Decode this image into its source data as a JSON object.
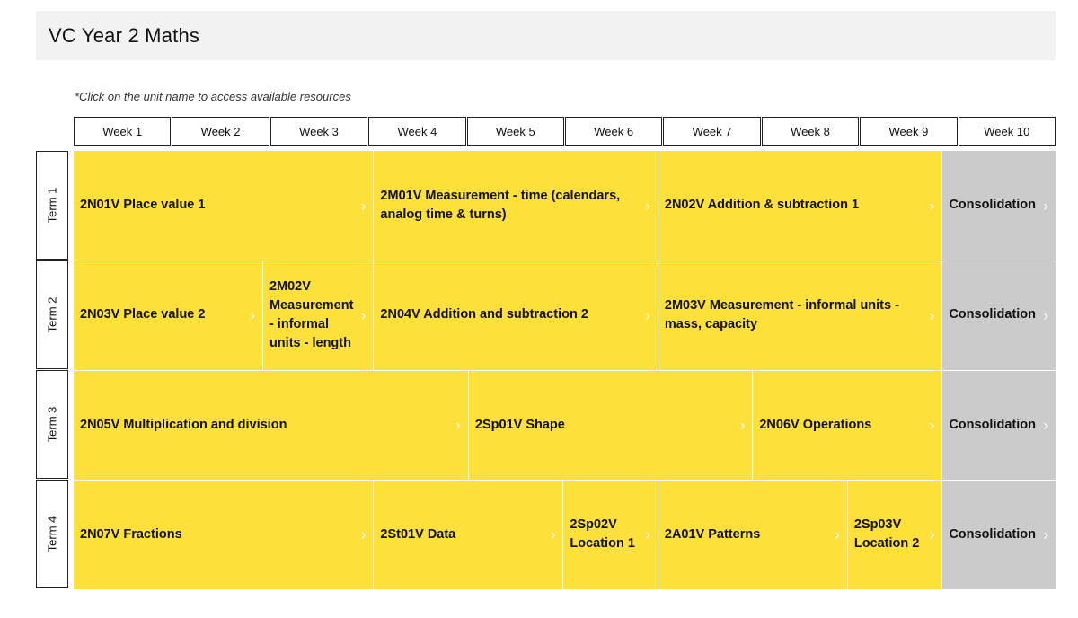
{
  "header": {
    "title": "VC Year 2 Maths"
  },
  "note": "*Click on the unit name to access available resources",
  "weeks": [
    "Week 1",
    "Week 2",
    "Week 3",
    "Week 4",
    "Week 5",
    "Week 6",
    "Week 7",
    "Week 8",
    "Week 9",
    "Week 10"
  ],
  "terms": [
    "Term 1",
    "Term 2",
    "Term 3",
    "Term 4"
  ],
  "icons": {
    "chevron": "chevron-right-icon"
  },
  "colors": {
    "unit": "#fde03a",
    "consolidation": "#cbcbcb",
    "header_bg": "#f2f2f2"
  },
  "units": {
    "t1": [
      "2N01V Place value 1",
      "2M01V Measurement - time (calendars, analog time & turns)",
      "2N02V Addition & subtraction 1",
      "Consolidation"
    ],
    "t2": [
      "2N03V Place value 2",
      "2M02V Measurement - informal units - length",
      "2N04V Addition and subtraction 2",
      "2M03V Measurement - informal units - mass, capacity",
      "Consolidation"
    ],
    "t3": [
      "2N05V Multiplication and division",
      "2Sp01V Shape",
      "2N06V Operations",
      "Consolidation"
    ],
    "t4": [
      "2N07V Fractions",
      "2St01V Data",
      "2Sp02V Location 1",
      "2A01V Patterns",
      "2Sp03V Location 2",
      "Consolidation"
    ]
  }
}
